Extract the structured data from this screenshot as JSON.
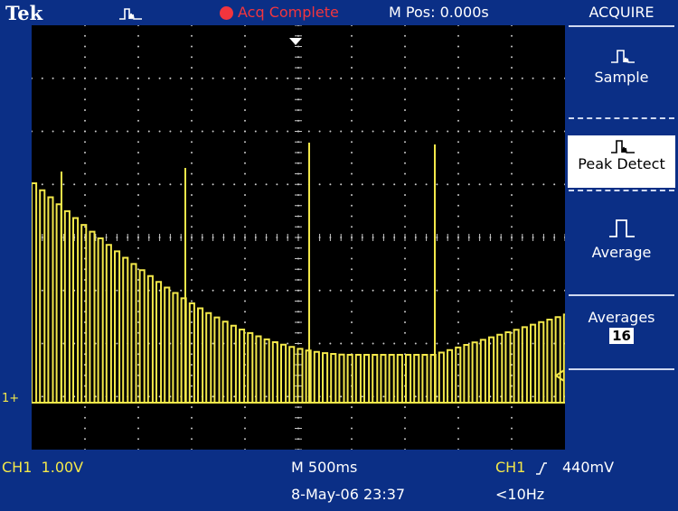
{
  "header": {
    "brand": "Tek",
    "acquire_mode_icon": "peak-detect-waveform-icon",
    "status": "Acq Complete",
    "status_color": "#f2353e",
    "mpos": "M Pos: 0.000s"
  },
  "menu": {
    "title": "ACQUIRE",
    "items": [
      {
        "label": "Sample",
        "icon": "sample-waveform-icon",
        "selected": false
      },
      {
        "label": "Peak Detect",
        "icon": "peak-detect-waveform-icon",
        "selected": true
      },
      {
        "label": "Average",
        "icon": "average-waveform-icon",
        "selected": false
      }
    ],
    "averages_label": "Averages",
    "averages_value": "16"
  },
  "footer": {
    "ch1_scale": "CH1  1.00V",
    "timebase": "M 500ms",
    "trigger": "CH1",
    "trigger_level": "440mV",
    "datetime": "8-May-06 23:37",
    "freq": "<10Hz"
  },
  "screen": {
    "ch1_marker": "1+",
    "trace_color": "#f3e84a"
  }
}
